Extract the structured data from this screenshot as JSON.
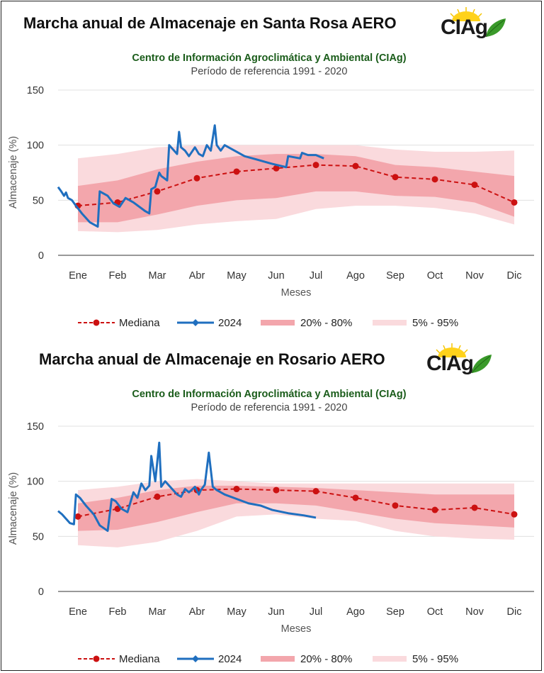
{
  "colors": {
    "median": "#cc1111",
    "series2024": "#1f6fbf",
    "band_20_80": "#f3a6ac",
    "band_5_95": "#fadadd",
    "subtitle": "#1a5c1a",
    "grid": "#e0e0e0"
  },
  "common": {
    "subtitle": "Centro de Información Agroclimática y Ambiental (CIAg)",
    "period": "Período de referencia 1991 - 2020",
    "logo_text": "CIAg",
    "legend": {
      "median": "Mediana",
      "series2024": "2024",
      "band_20_80": "20% - 80%",
      "band_5_95": "5% - 95%"
    }
  },
  "chart_data": [
    {
      "type": "line",
      "title": "Marcha anual de Almacenaje en Santa Rosa AERO",
      "xlabel": "Meses",
      "ylabel": "Almacenaje (%)",
      "ylim": [
        0,
        150
      ],
      "yticks": [
        0,
        50,
        100,
        150
      ],
      "categories": [
        "Ene",
        "Feb",
        "Mar",
        "Abr",
        "May",
        "Jun",
        "Jul",
        "Ago",
        "Sep",
        "Oct",
        "Nov",
        "Dic"
      ],
      "median": [
        45,
        48,
        58,
        70,
        76,
        79,
        82,
        81,
        71,
        69,
        64,
        48
      ],
      "band_20_80": {
        "low": [
          30,
          30,
          37,
          45,
          50,
          52,
          58,
          58,
          54,
          53,
          48,
          35
        ],
        "high": [
          63,
          68,
          78,
          85,
          90,
          92,
          92,
          90,
          82,
          80,
          76,
          72
        ]
      },
      "band_5_95": {
        "low": [
          22,
          21,
          23,
          28,
          31,
          33,
          42,
          45,
          45,
          43,
          38,
          28
        ],
        "high": [
          88,
          92,
          98,
          100,
          100,
          100,
          100,
          100,
          96,
          94,
          94,
          95
        ]
      },
      "series2024": [
        [
          0.0,
          62
        ],
        [
          0.08,
          58
        ],
        [
          0.15,
          54
        ],
        [
          0.2,
          57
        ],
        [
          0.25,
          52
        ],
        [
          0.35,
          50
        ],
        [
          0.45,
          45
        ],
        [
          0.6,
          38
        ],
        [
          0.8,
          30
        ],
        [
          1.0,
          26
        ],
        [
          1.05,
          58
        ],
        [
          1.25,
          54
        ],
        [
          1.4,
          47
        ],
        [
          1.55,
          44
        ],
        [
          1.7,
          52
        ],
        [
          1.9,
          48
        ],
        [
          2.2,
          40
        ],
        [
          2.3,
          38
        ],
        [
          2.35,
          60
        ],
        [
          2.45,
          62
        ],
        [
          2.55,
          75
        ],
        [
          2.6,
          72
        ],
        [
          2.75,
          68
        ],
        [
          2.8,
          100
        ],
        [
          2.9,
          96
        ],
        [
          3.0,
          92
        ],
        [
          3.05,
          112
        ],
        [
          3.1,
          98
        ],
        [
          3.2,
          95
        ],
        [
          3.3,
          90
        ],
        [
          3.45,
          98
        ],
        [
          3.55,
          92
        ],
        [
          3.65,
          90
        ],
        [
          3.75,
          100
        ],
        [
          3.85,
          95
        ],
        [
          3.95,
          118
        ],
        [
          4.0,
          100
        ],
        [
          4.1,
          95
        ],
        [
          4.2,
          100
        ],
        [
          4.3,
          98
        ],
        [
          4.45,
          95
        ],
        [
          4.7,
          90
        ],
        [
          5.0,
          87
        ],
        [
          5.4,
          83
        ],
        [
          5.75,
          80
        ],
        [
          5.8,
          90
        ],
        [
          6.1,
          88
        ],
        [
          6.15,
          93
        ],
        [
          6.3,
          91
        ],
        [
          6.5,
          91
        ],
        [
          6.7,
          88
        ]
      ]
    },
    {
      "type": "line",
      "title": "Marcha anual de Almacenaje en Rosario AERO",
      "xlabel": "Meses",
      "ylabel": "Almacenaje (%)",
      "ylim": [
        0,
        150
      ],
      "yticks": [
        0,
        50,
        100,
        150
      ],
      "categories": [
        "Ene",
        "Feb",
        "Mar",
        "Abr",
        "May",
        "Jun",
        "Jul",
        "Ago",
        "Sep",
        "Oct",
        "Nov",
        "Dic"
      ],
      "median": [
        68,
        75,
        86,
        92,
        93,
        92,
        91,
        85,
        78,
        74,
        76,
        70
      ],
      "band_20_80": {
        "low": [
          55,
          56,
          63,
          72,
          80,
          80,
          78,
          72,
          66,
          62,
          60,
          58
        ],
        "high": [
          80,
          85,
          92,
          96,
          96,
          95,
          94,
          92,
          90,
          88,
          88,
          88
        ]
      },
      "band_5_95": {
        "low": [
          42,
          40,
          45,
          55,
          68,
          70,
          66,
          64,
          55,
          50,
          48,
          47
        ],
        "high": [
          92,
          95,
          100,
          102,
          100,
          98,
          98,
          98,
          98,
          98,
          98,
          98
        ]
      },
      "series2024": [
        [
          0.0,
          73
        ],
        [
          0.1,
          70
        ],
        [
          0.2,
          66
        ],
        [
          0.3,
          62
        ],
        [
          0.4,
          61
        ],
        [
          0.45,
          88
        ],
        [
          0.55,
          85
        ],
        [
          0.7,
          78
        ],
        [
          0.9,
          70
        ],
        [
          1.05,
          60
        ],
        [
          1.25,
          55
        ],
        [
          1.35,
          84
        ],
        [
          1.45,
          82
        ],
        [
          1.6,
          75
        ],
        [
          1.75,
          72
        ],
        [
          1.9,
          90
        ],
        [
          2.0,
          85
        ],
        [
          2.1,
          98
        ],
        [
          2.2,
          92
        ],
        [
          2.3,
          96
        ],
        [
          2.35,
          123
        ],
        [
          2.45,
          100
        ],
        [
          2.55,
          135
        ],
        [
          2.6,
          95
        ],
        [
          2.7,
          100
        ],
        [
          2.8,
          96
        ],
        [
          3.0,
          88
        ],
        [
          3.1,
          86
        ],
        [
          3.2,
          93
        ],
        [
          3.3,
          90
        ],
        [
          3.45,
          95
        ],
        [
          3.55,
          88
        ],
        [
          3.6,
          92
        ],
        [
          3.7,
          97
        ],
        [
          3.8,
          126
        ],
        [
          3.9,
          95
        ],
        [
          4.0,
          92
        ],
        [
          4.2,
          88
        ],
        [
          4.5,
          84
        ],
        [
          4.8,
          80
        ],
        [
          5.1,
          78
        ],
        [
          5.4,
          74
        ],
        [
          5.8,
          71
        ],
        [
          6.2,
          69
        ],
        [
          6.5,
          67
        ]
      ]
    }
  ]
}
